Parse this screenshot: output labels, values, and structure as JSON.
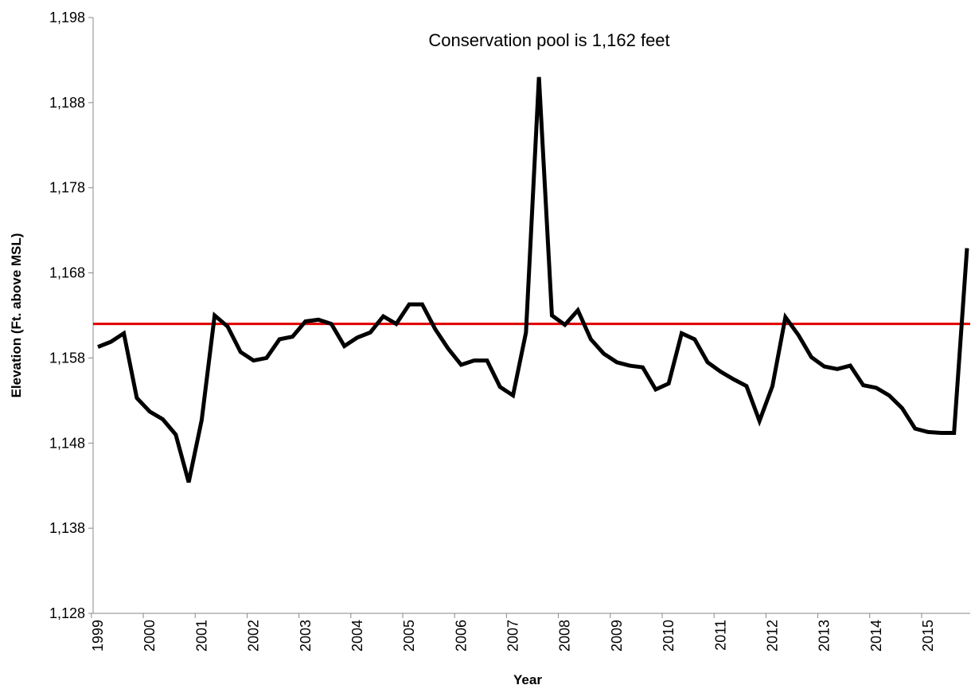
{
  "chart_data": {
    "type": "line",
    "annotation": "Conservation pool is 1,162 feet",
    "x_label": "Year",
    "y_label": "Elevation (Ft. above MSL)",
    "categories": [
      "1999",
      null,
      null,
      null,
      "2000",
      null,
      null,
      null,
      "2001",
      null,
      null,
      null,
      "2002",
      null,
      null,
      null,
      "2003",
      null,
      null,
      null,
      "2004",
      null,
      null,
      null,
      "2005",
      null,
      null,
      null,
      "2006",
      null,
      null,
      null,
      "2007",
      null,
      null,
      null,
      "2008",
      null,
      null,
      null,
      "2009",
      null,
      null,
      null,
      "2010",
      null,
      null,
      null,
      "2011",
      null,
      null,
      null,
      "2012",
      null,
      null,
      null,
      "2013",
      null,
      null,
      null,
      "2014",
      null,
      null,
      null,
      "2015",
      null,
      null,
      null
    ],
    "series": [
      {
        "color": "#000000",
        "values": [
          1159.3,
          1159.9,
          1160.9,
          1153.3,
          1151.7,
          1150.8,
          1149.0,
          1143.4,
          1150.7,
          1163.0,
          1161.7,
          1158.7,
          1157.7,
          1158.0,
          1160.2,
          1160.5,
          1162.3,
          1162.5,
          1162.0,
          1159.4,
          1160.4,
          1161.0,
          1162.9,
          1162.0,
          1164.3,
          1164.3,
          1161.4,
          1159.1,
          1157.2,
          1157.7,
          1157.7,
          1154.6,
          1153.6,
          1161.0,
          1191.0,
          1163.0,
          1161.9,
          1163.6,
          1160.2,
          1158.5,
          1157.5,
          1157.1,
          1156.9,
          1154.3,
          1155.0,
          1160.9,
          1160.2,
          1157.5,
          1156.4,
          1155.5,
          1154.7,
          1150.6,
          1154.7,
          1162.8,
          1160.7,
          1158.1,
          1157.0,
          1156.7,
          1157.1,
          1154.8,
          1154.5,
          1153.6,
          1152.1,
          1149.7,
          1149.3,
          1149.2,
          1149.2,
          1170.9
        ]
      }
    ],
    "reference_line": {
      "value": 1162,
      "color": "#e00000"
    },
    "ylim": [
      1128,
      1198
    ],
    "yticks": [
      {
        "value": 1128,
        "label": "1,128"
      },
      {
        "value": 1138,
        "label": "1,138"
      },
      {
        "value": 1148,
        "label": "1,148"
      },
      {
        "value": 1158,
        "label": "1,158"
      },
      {
        "value": 1168,
        "label": "1,168"
      },
      {
        "value": 1178,
        "label": "1,178"
      },
      {
        "value": 1188,
        "label": "1,188"
      },
      {
        "value": 1198,
        "label": "1,198"
      }
    ]
  }
}
